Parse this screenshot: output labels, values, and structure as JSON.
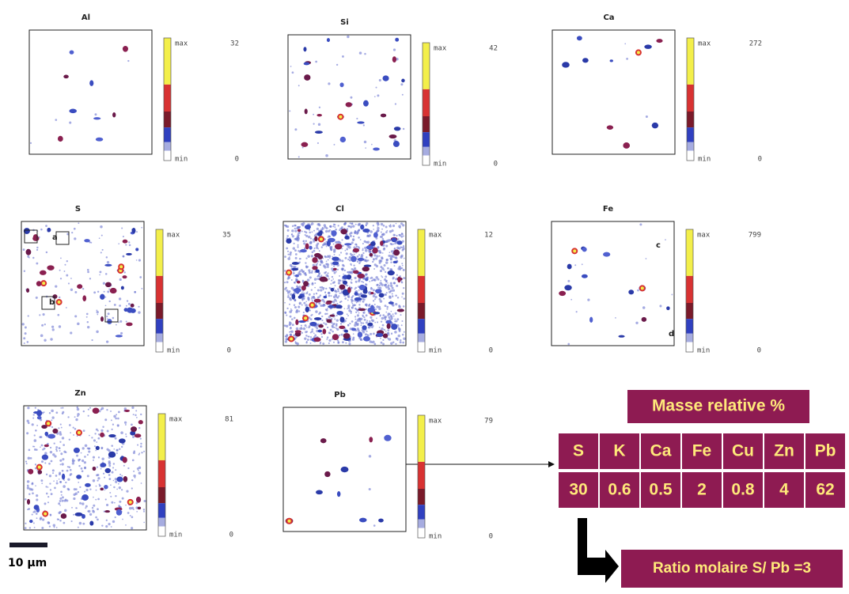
{
  "panels": [
    {
      "title": "Al",
      "max_value": 32,
      "min_value": 0
    },
    {
      "title": "Si",
      "max_value": 42,
      "min_value": 0
    },
    {
      "title": "Ca",
      "max_value": 272,
      "min_value": 0
    },
    {
      "title": "S",
      "max_value": 35,
      "min_value": 0
    },
    {
      "title": "Cl",
      "max_value": 12,
      "min_value": 0
    },
    {
      "title": "Fe",
      "max_value": 799,
      "min_value": 0
    },
    {
      "title": "Zn",
      "max_value": 81,
      "min_value": 0
    },
    {
      "title": "Pb",
      "max_value": 79,
      "min_value": 0
    }
  ],
  "colorbar": {
    "max_label": "max",
    "min_label": "min"
  },
  "annotations": [
    "a",
    "b",
    "c",
    "d"
  ],
  "table": {
    "title": "Masse relative %",
    "header": [
      "S",
      "K",
      "Ca",
      "Fe",
      "Cu",
      "Zn",
      "Pb"
    ],
    "row": [
      30,
      0.6,
      0.5,
      2,
      0.8,
      4,
      62
    ]
  },
  "result": "Ratio molaire S/ Pb =3",
  "scale_bar": "10 µm"
}
